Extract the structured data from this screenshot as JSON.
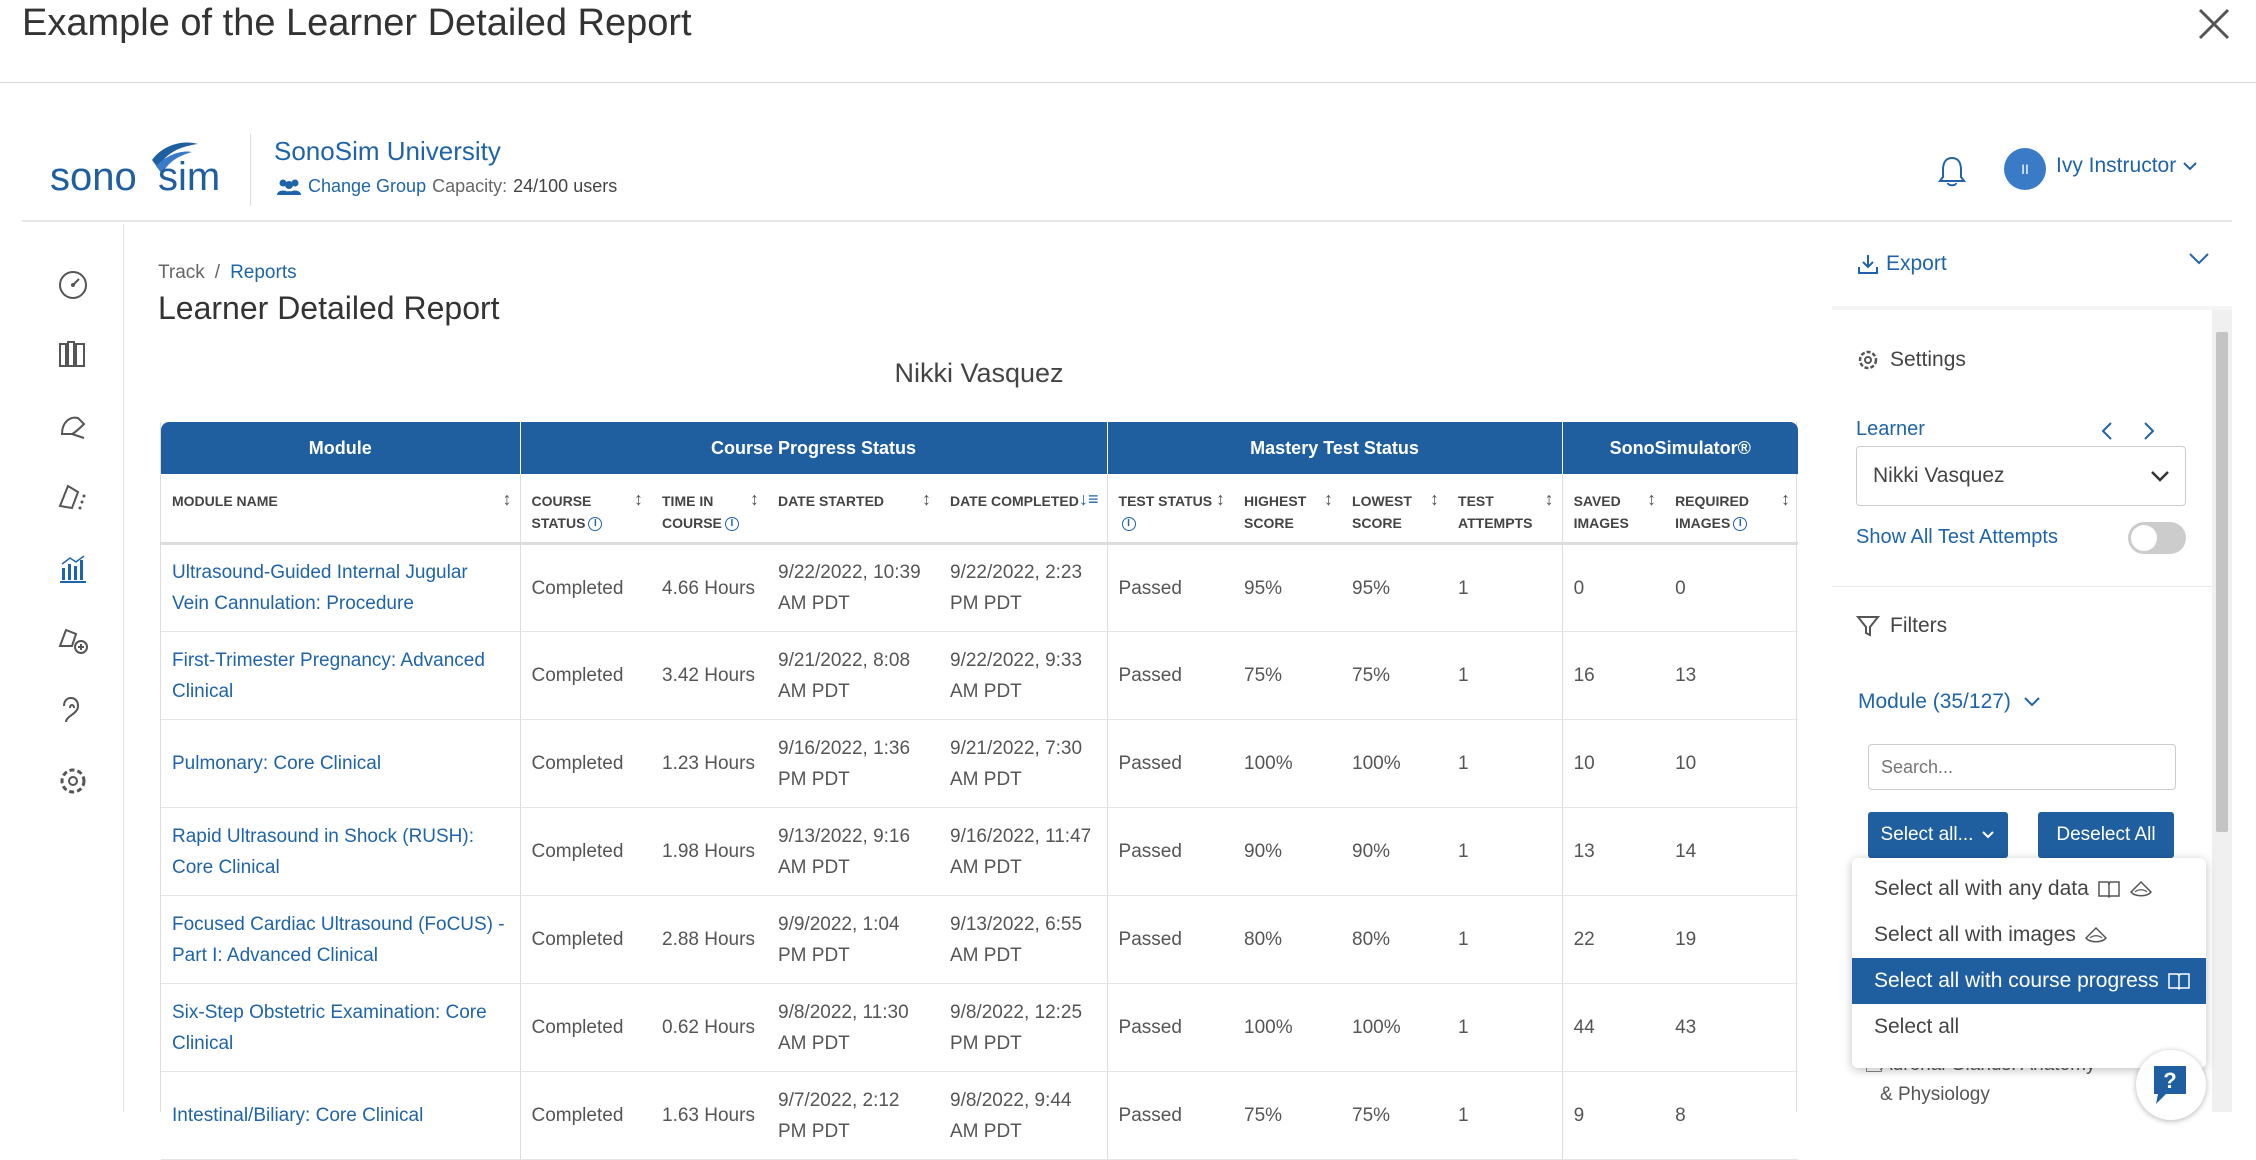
{
  "modal": {
    "title": "Example of the Learner Detailed Report"
  },
  "header": {
    "org_name": "SonoSim University",
    "change_group": "Change Group",
    "capacity_label": "Capacity:",
    "capacity_value": "24/100 users",
    "avatar_initials": "II",
    "user_name": "Ivy Instructor"
  },
  "breadcrumb": {
    "root": "Track",
    "sep": "/",
    "current": "Reports"
  },
  "page": {
    "title": "Learner Detailed Report",
    "learner_name": "Nikki Vasquez"
  },
  "table": {
    "groups": [
      "Module",
      "Course Progress Status",
      "Mastery Test Status",
      "SonoSimulator®"
    ],
    "columns": {
      "module_name": "MODULE NAME",
      "course_status": "COURSE STATUS",
      "time_in_course": "TIME IN COURSE",
      "date_started": "DATE STARTED",
      "date_completed": "DATE COMPLETED",
      "test_status": "TEST STATUS",
      "highest_score": "HIGHEST SCORE",
      "lowest_score": "LOWEST SCORE",
      "test_attempts": "TEST ATTEMPTS",
      "saved_images": "SAVED IMAGES",
      "required_images": "REQUIRED IMAGES"
    },
    "rows": [
      {
        "module": "Ultrasound-Guided Internal Jugular Vein Cannulation: Procedure",
        "status": "Completed",
        "time": "4.66 Hours",
        "started": "9/22/2022, 10:39 AM PDT",
        "completed": "9/22/2022, 2:23 PM PDT",
        "test": "Passed",
        "high": "95%",
        "low": "95%",
        "attempts": "1",
        "saved": "0",
        "required": "0"
      },
      {
        "module": "First-Trimester Pregnancy: Advanced Clinical",
        "status": "Completed",
        "time": "3.42 Hours",
        "started": "9/21/2022, 8:08 AM PDT",
        "completed": "9/22/2022, 9:33 AM PDT",
        "test": "Passed",
        "high": "75%",
        "low": "75%",
        "attempts": "1",
        "saved": "16",
        "required": "13"
      },
      {
        "module": "Pulmonary: Core Clinical",
        "status": "Completed",
        "time": "1.23 Hours",
        "started": "9/16/2022, 1:36 PM PDT",
        "completed": "9/21/2022, 7:30 AM PDT",
        "test": "Passed",
        "high": "100%",
        "low": "100%",
        "attempts": "1",
        "saved": "10",
        "required": "10"
      },
      {
        "module": "Rapid Ultrasound in Shock (RUSH): Core Clinical",
        "status": "Completed",
        "time": "1.98 Hours",
        "started": "9/13/2022, 9:16 AM PDT",
        "completed": "9/16/2022, 11:47 AM PDT",
        "test": "Passed",
        "high": "90%",
        "low": "90%",
        "attempts": "1",
        "saved": "13",
        "required": "14"
      },
      {
        "module": "Focused Cardiac Ultrasound (FoCUS) - Part I: Advanced Clinical",
        "status": "Completed",
        "time": "2.88 Hours",
        "started": "9/9/2022, 1:04 PM PDT",
        "completed": "9/13/2022, 6:55 AM PDT",
        "test": "Passed",
        "high": "80%",
        "low": "80%",
        "attempts": "1",
        "saved": "22",
        "required": "19"
      },
      {
        "module": "Six-Step Obstetric Examination: Core Clinical",
        "status": "Completed",
        "time": "0.62 Hours",
        "started": "9/8/2022, 11:30 AM PDT",
        "completed": "9/8/2022, 12:25 PM PDT",
        "test": "Passed",
        "high": "100%",
        "low": "100%",
        "attempts": "1",
        "saved": "44",
        "required": "43"
      },
      {
        "module": "Intestinal/Biliary: Core Clinical",
        "status": "Completed",
        "time": "1.63 Hours",
        "started": "9/7/2022, 2:12 PM PDT",
        "completed": "9/8/2022, 9:44 AM PDT",
        "test": "Passed",
        "high": "75%",
        "low": "75%",
        "attempts": "1",
        "saved": "9",
        "required": "8"
      }
    ]
  },
  "panel": {
    "export": "Export",
    "settings": "Settings",
    "learner_label": "Learner",
    "learner_value": "Nikki Vasquez",
    "show_all": "Show All Test Attempts",
    "filters": "Filters",
    "module_filter": "Module (35/127)",
    "search_placeholder": "Search...",
    "select_all": "Select all...",
    "deselect_all": "Deselect All",
    "partial_item": "Adrenal Glands: Anatomy & Physiology",
    "dropdown": [
      "Select all with any data",
      "Select all with images",
      "Select all with course progress",
      "Select all"
    ]
  },
  "colors": {
    "primary": "#1f5fa0",
    "link": "#1f64a8",
    "avatar": "#3a7bc8"
  }
}
